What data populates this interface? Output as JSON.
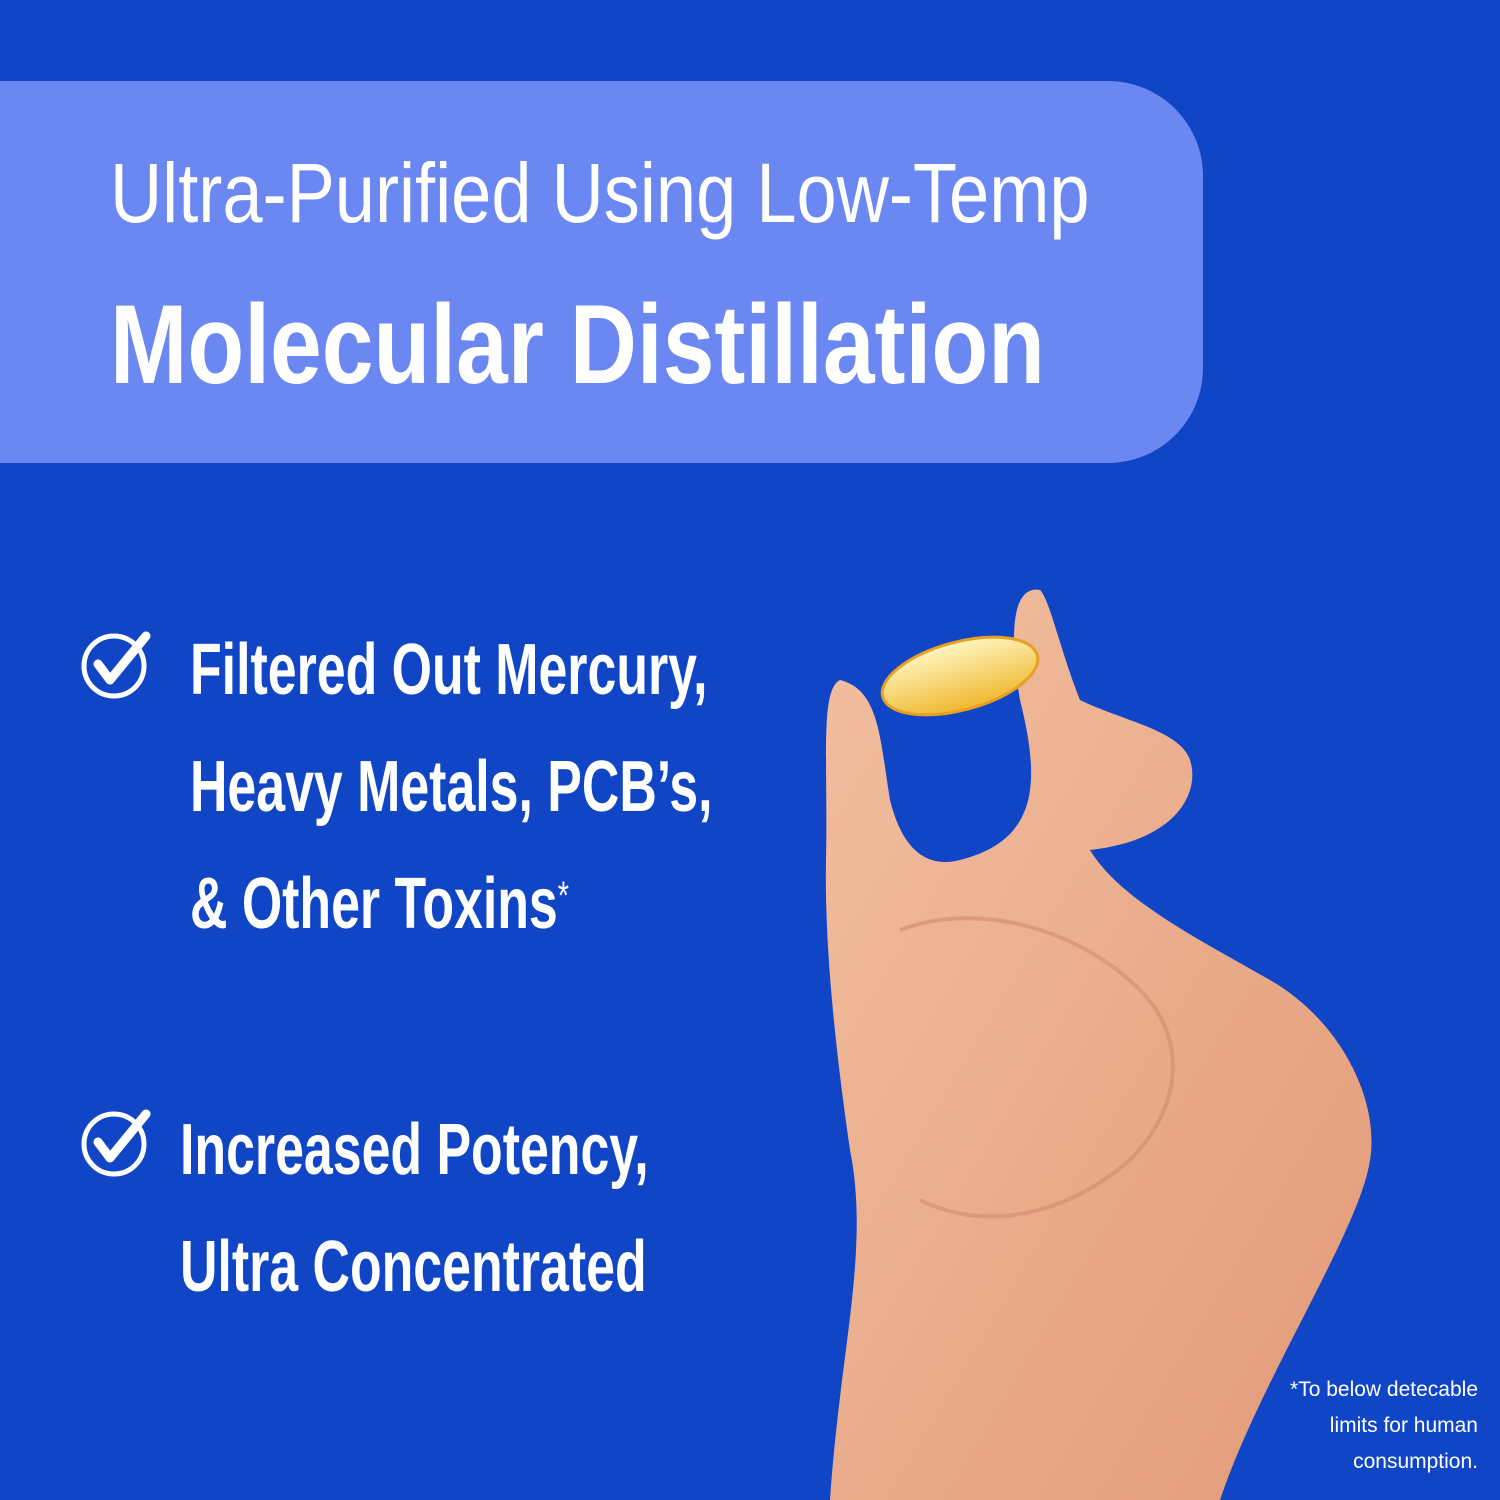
{
  "header": {
    "line1": "Ultra-Purified Using Low-Temp",
    "line2": "Molecular Distillation"
  },
  "bullets": [
    {
      "icon": "check-circle-icon",
      "lines": [
        "Filtered Out Mercury,",
        "Heavy Metals, PCB’s,",
        "& Other Toxins"
      ],
      "asterisk": "*"
    },
    {
      "icon": "check-circle-icon",
      "lines": [
        "Increased Potency,",
        "Ultra Concentrated"
      ]
    }
  ],
  "footnote": [
    "*To below detecable",
    "limits for human",
    "consumption."
  ],
  "colors": {
    "background": "#1046C6",
    "banner": "#6B87F2",
    "text": "#FFFFFF"
  }
}
